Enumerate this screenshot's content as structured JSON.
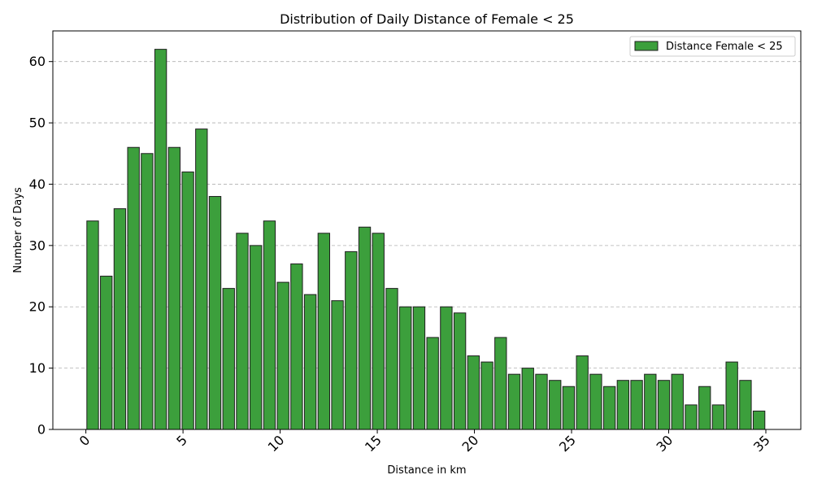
{
  "chart_data": {
    "type": "bar",
    "title": "Distribution of Daily Distance of Female < 25",
    "xlabel": "Distance in km",
    "ylabel": "Number of Days",
    "legend": {
      "label": "Distance Female < 25",
      "position": "top-right"
    },
    "bar_color": "#3c9f3c",
    "bar_edge_color": "#1e1e1e",
    "grid": {
      "y": true,
      "style": "dashed"
    },
    "xlim": [
      -1.7,
      36.8
    ],
    "ylim": [
      0,
      65
    ],
    "xticks": [
      0,
      5,
      10,
      15,
      20,
      25,
      30,
      35
    ],
    "xtick_labels": [
      "0",
      "5",
      "10",
      "15",
      "20",
      "25",
      "30",
      "35"
    ],
    "yticks": [
      0,
      10,
      20,
      30,
      40,
      50,
      60
    ],
    "ytick_labels": [
      "0",
      "10",
      "20",
      "30",
      "40",
      "50",
      "60"
    ],
    "x": [
      0.35,
      1.05,
      1.75,
      2.45,
      3.15,
      3.85,
      4.55,
      5.25,
      5.95,
      6.65,
      7.35,
      8.05,
      8.75,
      9.45,
      10.15,
      10.85,
      11.55,
      12.25,
      12.95,
      13.65,
      14.35,
      15.05,
      15.75,
      16.45,
      17.15,
      17.85,
      18.55,
      19.25,
      19.95,
      20.65,
      21.35,
      22.05,
      22.75,
      23.45,
      24.15,
      24.85,
      25.55,
      26.25,
      26.95,
      27.65,
      28.35,
      29.05,
      29.75,
      30.45,
      31.15,
      31.85,
      32.55,
      33.25,
      33.95,
      34.65
    ],
    "values": [
      34,
      25,
      36,
      46,
      45,
      62,
      46,
      42,
      49,
      38,
      23,
      32,
      30,
      34,
      24,
      27,
      22,
      32,
      21,
      29,
      33,
      32,
      23,
      20,
      20,
      15,
      20,
      19,
      12,
      11,
      15,
      9,
      10,
      9,
      8,
      7,
      12,
      9,
      7,
      8,
      8,
      9,
      8,
      9,
      4,
      7,
      4,
      11,
      8,
      3
    ],
    "bar_width": 0.6
  }
}
